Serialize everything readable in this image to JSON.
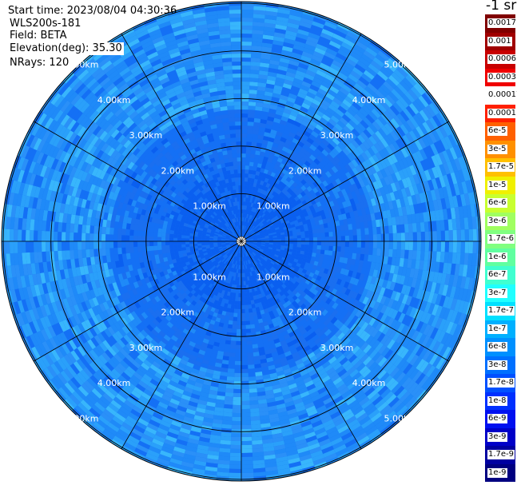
{
  "header": {
    "start_time": "Start time: 2023/08/04 04:30:36",
    "instrument": "WLS200s-181",
    "field": "Field: BETA",
    "elevation": "Elevation(deg): 35.30",
    "nrays": "NRays: 120"
  },
  "colorbar": {
    "unit_label": "-1 sr",
    "labels": [
      "0.0017",
      "0.001",
      "0.0006",
      "0.0003",
      "0.00017",
      "0.0001",
      "6e-5",
      "3e-5",
      "1.7e-5",
      "1e-5",
      "6e-6",
      "3e-6",
      "1.7e-6",
      "1e-6",
      "6e-7",
      "3e-7",
      "1.7e-7",
      "1e-7",
      "6e-8",
      "3e-8",
      "1.7e-8",
      "1e-8",
      "6e-9",
      "3e-9",
      "1.7e-9",
      "1e-9"
    ],
    "colors": [
      "#800000",
      "#a00000",
      "#c80000",
      "#f00000",
      "#ffffff",
      "#ff2000",
      "#ff6000",
      "#ff9000",
      "#ffc000",
      "#f0f000",
      "#c8ff30",
      "#a0ff60",
      "#80ff80",
      "#60ffa0",
      "#40ffd0",
      "#20ffff",
      "#00e0ff",
      "#00b0ff",
      "#0090ff",
      "#0070ff",
      "#0050ff",
      "#0030ff",
      "#0010f0",
      "#0000c8",
      "#0000a0",
      "#000080"
    ]
  },
  "chart_data": {
    "type": "heatmap",
    "projection": "polar",
    "range_rings_km": [
      1,
      2,
      3,
      4,
      5
    ],
    "range_labels": [
      "1.00km",
      "2.00km",
      "3.00km",
      "4.00km",
      "5.00km"
    ],
    "max_range_km": 5,
    "azimuth_spokes_deg": [
      0,
      30,
      60,
      90,
      120,
      150,
      180,
      210,
      240,
      270,
      300,
      330
    ],
    "nrays": 120,
    "dominant_value_range": [
      "3e-8",
      "1.7e-7"
    ],
    "palette": [
      "#0a5ff0",
      "#1470f5",
      "#1f8af8",
      "#2aa0fa",
      "#38b6fc",
      "#1a6ff0",
      "#2a90f8"
    ]
  }
}
